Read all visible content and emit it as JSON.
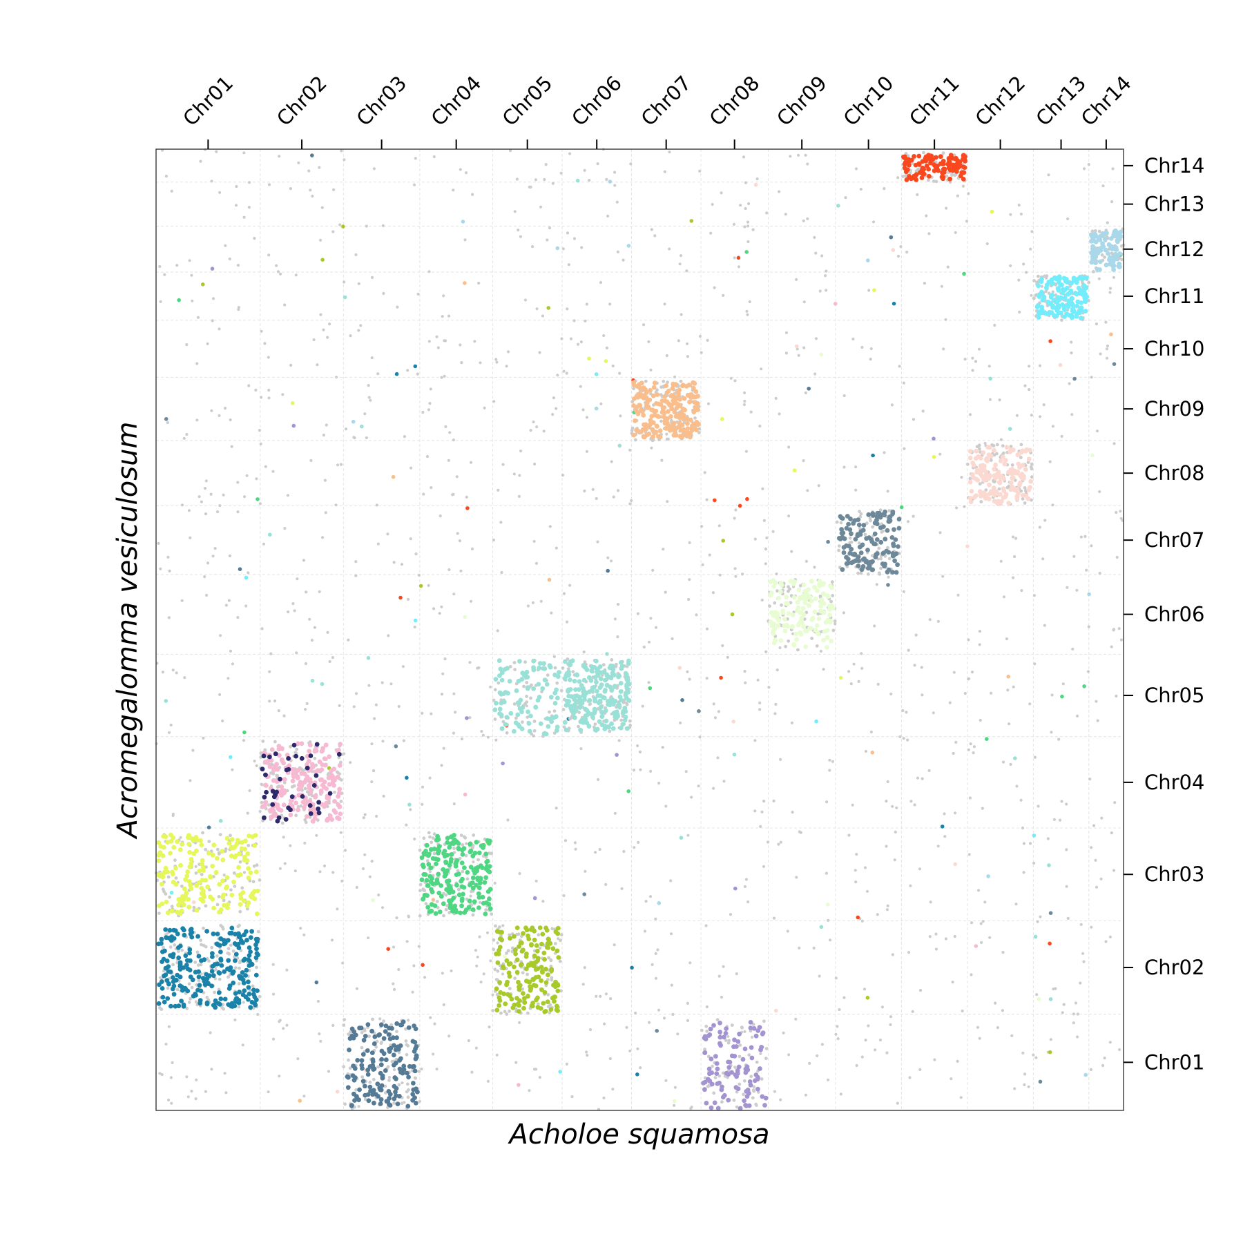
{
  "chart_data": {
    "type": "scatter",
    "title": "",
    "xlabel": "Acholoe squamosa",
    "ylabel": "Acromegalomma vesiculosum",
    "grid": true,
    "x_chromosomes": [
      {
        "name": "Chr01",
        "length": 150
      },
      {
        "name": "Chr02",
        "length": 120
      },
      {
        "name": "Chr03",
        "length": 110
      },
      {
        "name": "Chr04",
        "length": 105
      },
      {
        "name": "Chr05",
        "length": 100
      },
      {
        "name": "Chr06",
        "length": 100
      },
      {
        "name": "Chr07",
        "length": 100
      },
      {
        "name": "Chr08",
        "length": 97
      },
      {
        "name": "Chr09",
        "length": 97
      },
      {
        "name": "Chr10",
        "length": 95
      },
      {
        "name": "Chr11",
        "length": 95
      },
      {
        "name": "Chr12",
        "length": 95
      },
      {
        "name": "Chr13",
        "length": 80
      },
      {
        "name": "Chr14",
        "length": 50
      }
    ],
    "y_chromosomes": [
      {
        "name": "Chr01",
        "length": 140
      },
      {
        "name": "Chr02",
        "length": 136
      },
      {
        "name": "Chr03",
        "length": 135
      },
      {
        "name": "Chr04",
        "length": 133
      },
      {
        "name": "Chr05",
        "length": 120
      },
      {
        "name": "Chr06",
        "length": 116
      },
      {
        "name": "Chr07",
        "length": 100
      },
      {
        "name": "Chr08",
        "length": 95
      },
      {
        "name": "Chr09",
        "length": 92
      },
      {
        "name": "Chr10",
        "length": 83
      },
      {
        "name": "Chr11",
        "length": 70
      },
      {
        "name": "Chr12",
        "length": 67
      },
      {
        "name": "Chr13",
        "length": 64
      },
      {
        "name": "Chr14",
        "length": 48
      }
    ],
    "blocks": [
      {
        "x": "Chr01",
        "y": "Chr02",
        "color": "#1a82a8",
        "density": 230,
        "yspan": [
          0.05,
          0.95
        ]
      },
      {
        "x": "Chr01",
        "y": "Chr03",
        "color": "#e5f75a",
        "density": 170,
        "yspan": [
          0.05,
          0.95
        ]
      },
      {
        "x": "Chr02",
        "y": "Chr04",
        "color": "#f7b8d2",
        "density": 200,
        "yspan": [
          0.05,
          0.95
        ],
        "accent": "#2c2a6b"
      },
      {
        "x": "Chr03",
        "y": "Chr01",
        "color": "#557a95",
        "density": 150,
        "yspan": [
          0.0,
          0.95
        ]
      },
      {
        "x": "Chr04",
        "y": "Chr03",
        "color": "#4fd683",
        "density": 190,
        "yspan": [
          0.05,
          0.95
        ]
      },
      {
        "x": "Chr05",
        "y": "Chr02",
        "color": "#a7ca2a",
        "density": 160,
        "yspan": [
          0.0,
          0.95
        ]
      },
      {
        "x": "Chr05",
        "y": "Chr05",
        "color": "#99e0d7",
        "density": 90,
        "yspan": [
          0.0,
          0.95
        ]
      },
      {
        "x": "Chr06",
        "y": "Chr05",
        "color": "#99e0d7",
        "density": 200,
        "yspan": [
          0.05,
          0.95
        ]
      },
      {
        "x": "Chr07",
        "y": "Chr09",
        "color": "#f9be8c",
        "density": 210,
        "yspan": [
          0.0,
          0.95
        ]
      },
      {
        "x": "Chr08",
        "y": "Chr01",
        "color": "#a393d1",
        "density": 100,
        "yspan": [
          0.0,
          0.95
        ]
      },
      {
        "x": "Chr09",
        "y": "Chr06",
        "color": "#e8fcd2",
        "density": 130,
        "yspan": [
          0.05,
          0.95
        ]
      },
      {
        "x": "Chr10",
        "y": "Chr07",
        "color": "#6d8898",
        "density": 130,
        "yspan": [
          0.0,
          0.95
        ]
      },
      {
        "x": "Chr11",
        "y": "Chr14",
        "color": "#f9471e",
        "density": 110,
        "yspan": [
          0.0,
          0.9
        ]
      },
      {
        "x": "Chr12",
        "y": "Chr08",
        "color": "#fcd9d0",
        "density": 150,
        "yspan": [
          0.0,
          0.95
        ]
      },
      {
        "x": "Chr13",
        "y": "Chr11",
        "color": "#73ecfb",
        "density": 140,
        "yspan": [
          0.0,
          0.95
        ]
      },
      {
        "x": "Chr14",
        "y": "Chr12",
        "color": "#a8d8ea",
        "density": 80,
        "yspan": [
          0.0,
          0.95
        ]
      }
    ],
    "background_point_color": "#cccccc"
  }
}
